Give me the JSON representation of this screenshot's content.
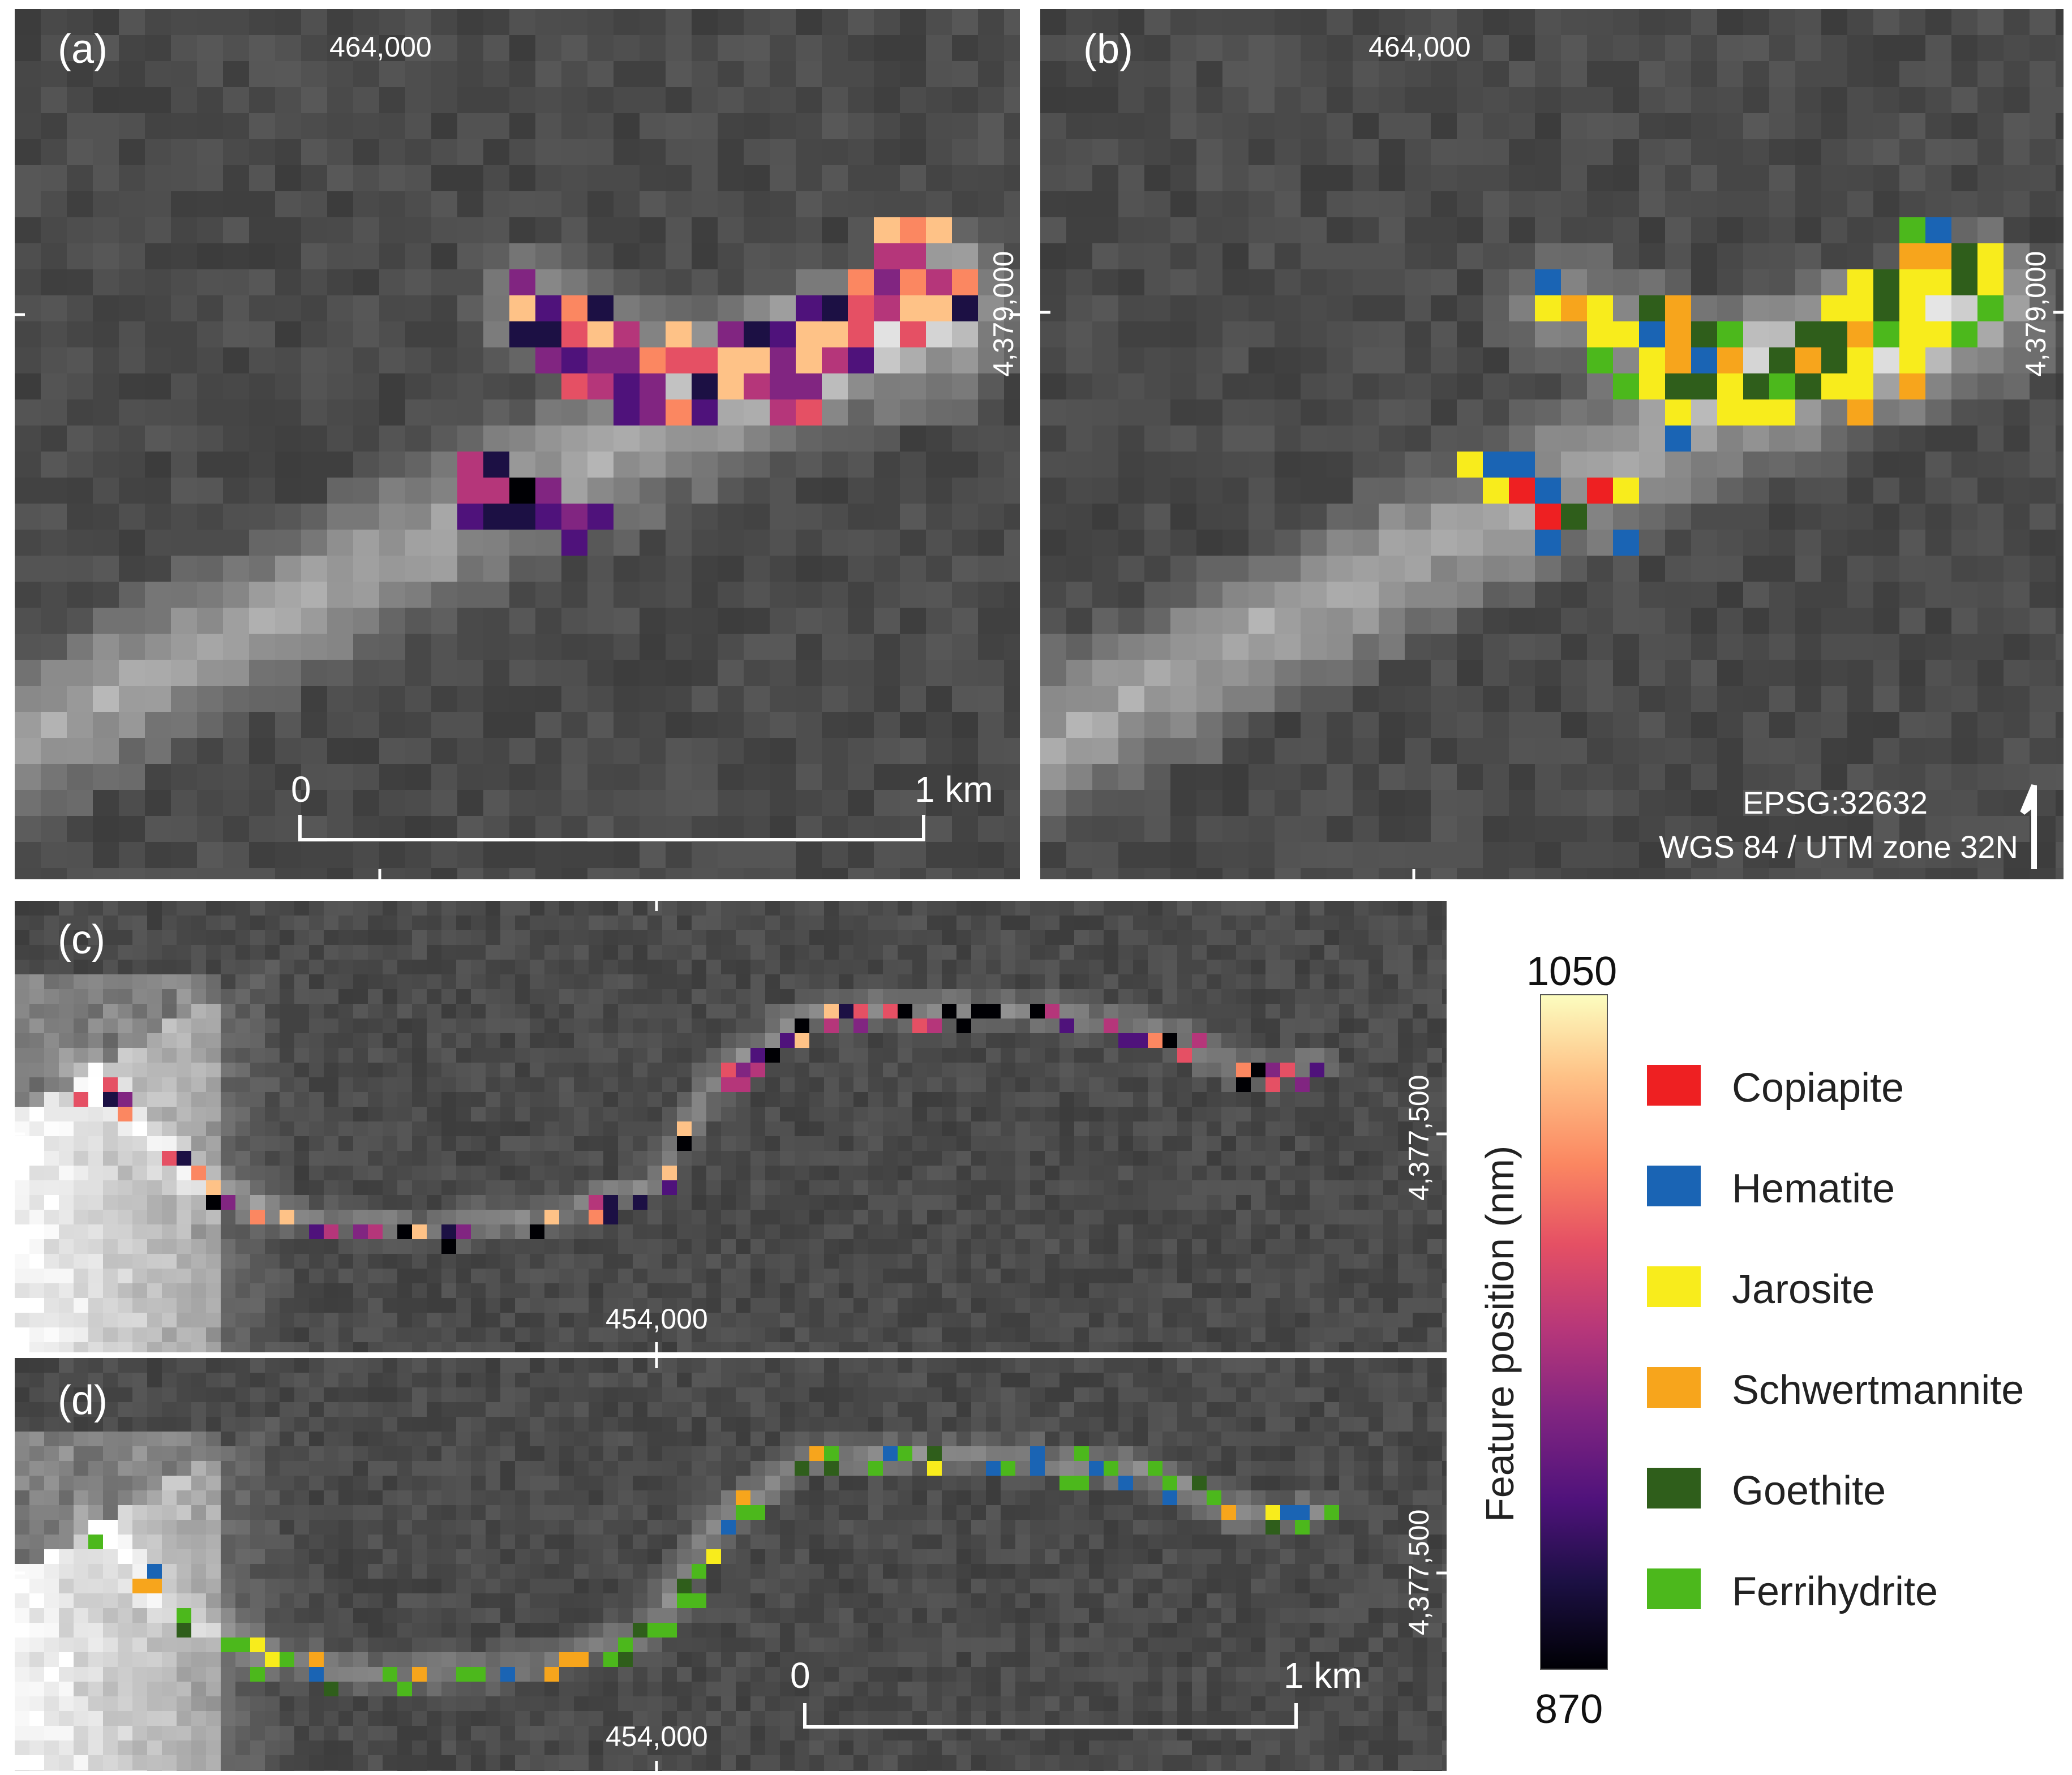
{
  "panels": {
    "a": {
      "label": "(a)",
      "x_tick": "464,000",
      "y_tick": "4,379,000",
      "scalebar": {
        "start": "0",
        "end": "1 km"
      }
    },
    "b": {
      "label": "(b)",
      "x_tick": "464,000",
      "y_tick": "4,379,000",
      "crs_line1": "EPSG:32632",
      "crs_line2": "WGS 84 / UTM zone 32N"
    },
    "c": {
      "label": "(c)",
      "x_tick": "454,000",
      "y_tick": "4,377,500"
    },
    "d": {
      "label": "(d)",
      "x_tick": "454,000",
      "y_tick": "4,377,500",
      "scalebar": {
        "start": "0",
        "end": "1 km"
      }
    }
  },
  "colorbar": {
    "title": "Feature position (nm)",
    "max": "1050",
    "min": "870"
  },
  "legend": [
    {
      "label": "Copiapite",
      "color": "#ee2022"
    },
    {
      "label": "Hematite",
      "color": "#1a64b4"
    },
    {
      "label": "Jarosite",
      "color": "#f8ec1c"
    },
    {
      "label": "Schwertmannite",
      "color": "#f7a51c"
    },
    {
      "label": "Goethite",
      "color": "#2f5e1b"
    },
    {
      "label": "Ferrihydrite",
      "color": "#4cb81c"
    }
  ],
  "colors": {
    "background": "#4a4a4a",
    "magma_high": "#fcfdbf",
    "magma_low": "#000004"
  }
}
